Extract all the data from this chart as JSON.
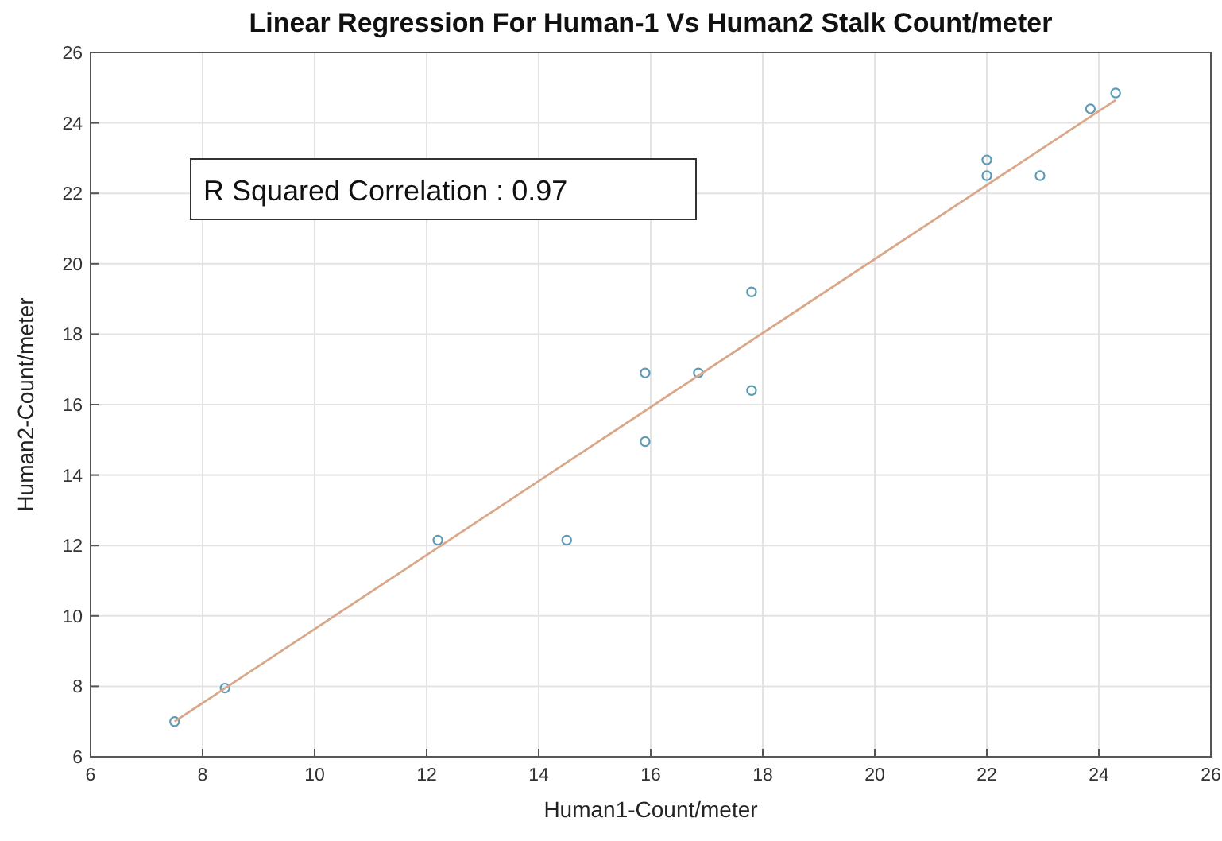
{
  "chart_data": {
    "type": "scatter",
    "title": "Linear Regression For Human-1 Vs Human2 Stalk Count/meter",
    "xlabel": "Human1-Count/meter",
    "ylabel": "Human2-Count/meter",
    "annotations": [
      "R Squared Correlation : 0.97"
    ],
    "xlim": [
      6,
      26
    ],
    "xticks": [
      6,
      8,
      10,
      12,
      14,
      16,
      18,
      20,
      22,
      24,
      26
    ],
    "ylim": [
      6,
      26
    ],
    "yticks": [
      6,
      8,
      10,
      12,
      14,
      16,
      18,
      20,
      22,
      24,
      26
    ],
    "grid": true,
    "series": [
      {
        "color": "#5b9bb5",
        "marker": "circle",
        "x": [
          7.5,
          8.4,
          12.2,
          14.5,
          15.9,
          15.9,
          16.85,
          17.8,
          17.8,
          22,
          22,
          22.95,
          23.85,
          24.3
        ],
        "values": [
          7.0,
          7.95,
          12.15,
          12.15,
          16.9,
          14.95,
          16.9,
          19.2,
          16.4,
          22.95,
          22.5,
          22.5,
          24.4,
          24.85
        ]
      },
      {
        "type": "line",
        "color": "#d9a88a",
        "marker": "none",
        "x": [
          7.5,
          24.3
        ],
        "values": [
          7.0,
          24.65
        ]
      }
    ]
  }
}
